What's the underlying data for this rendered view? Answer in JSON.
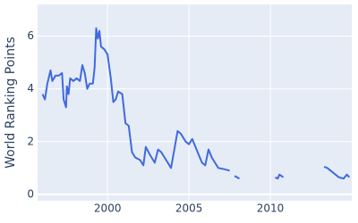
{
  "chart_data": {
    "type": "line",
    "y_label": "World Ranking Points",
    "x": [
      1996.0,
      1996.15,
      1996.3,
      1996.5,
      1996.6,
      1996.8,
      1997.0,
      1997.2,
      1997.3,
      1997.45,
      1997.5,
      1997.6,
      1997.7,
      1997.9,
      1998.1,
      1998.3,
      1998.45,
      1998.6,
      1998.75,
      1998.9,
      1999.1,
      1999.2,
      1999.3,
      1999.4,
      1999.5,
      1999.6,
      1999.8,
      2000.0,
      2000.2,
      2000.35,
      2000.5,
      2000.65,
      2000.9,
      2001.1,
      2001.3,
      2001.5,
      2001.7,
      2002.0,
      2002.2,
      2002.35,
      2002.6,
      2002.9,
      2003.1,
      2003.3,
      2003.6,
      2003.9,
      2004.1,
      2004.3,
      2004.5,
      2004.8,
      2005.0,
      2005.2,
      2005.4,
      2005.6,
      2005.8,
      2006.0,
      2006.2,
      2006.4,
      2006.6,
      2006.8,
      2007.2,
      2007.5,
      2007.65,
      2007.8,
      2008.1,
      2009.2,
      2010.3,
      2010.45,
      2010.55,
      2010.8,
      2012.0,
      2013.3,
      2013.5,
      2013.9,
      2014.2,
      2014.5,
      2014.7,
      2014.85
    ],
    "series": [
      {
        "color": "#4169e1",
        "values": [
          3.8,
          3.6,
          4.2,
          4.7,
          4.3,
          4.5,
          4.5,
          4.6,
          3.6,
          3.3,
          4.1,
          3.8,
          4.4,
          4.3,
          4.4,
          4.3,
          4.9,
          4.6,
          4.0,
          4.2,
          4.2,
          4.8,
          6.3,
          5.9,
          6.2,
          5.6,
          5.5,
          5.3,
          4.4,
          3.5,
          3.6,
          3.9,
          3.8,
          2.7,
          2.6,
          1.6,
          1.4,
          1.3,
          1.1,
          1.8,
          1.5,
          1.2,
          1.7,
          1.6,
          1.3,
          1.0,
          1.7,
          2.4,
          2.3,
          2.0,
          1.9,
          2.1,
          1.8,
          1.5,
          1.2,
          1.1,
          1.7,
          1.4,
          1.2,
          1.0,
          0.95,
          0.9,
          null,
          0.7,
          0.6,
          null,
          0.65,
          0.6,
          0.75,
          0.65,
          null,
          1.05,
          1.0,
          0.8,
          0.65,
          0.6,
          0.75,
          0.65
        ]
      }
    ],
    "xlim": [
      1995.7,
      2015.0
    ],
    "xticks": [
      2000,
      2005,
      2010
    ],
    "ylim": [
      -0.24,
      7.2
    ],
    "yticks": [
      0,
      2,
      4,
      6
    ],
    "grid": true
  }
}
